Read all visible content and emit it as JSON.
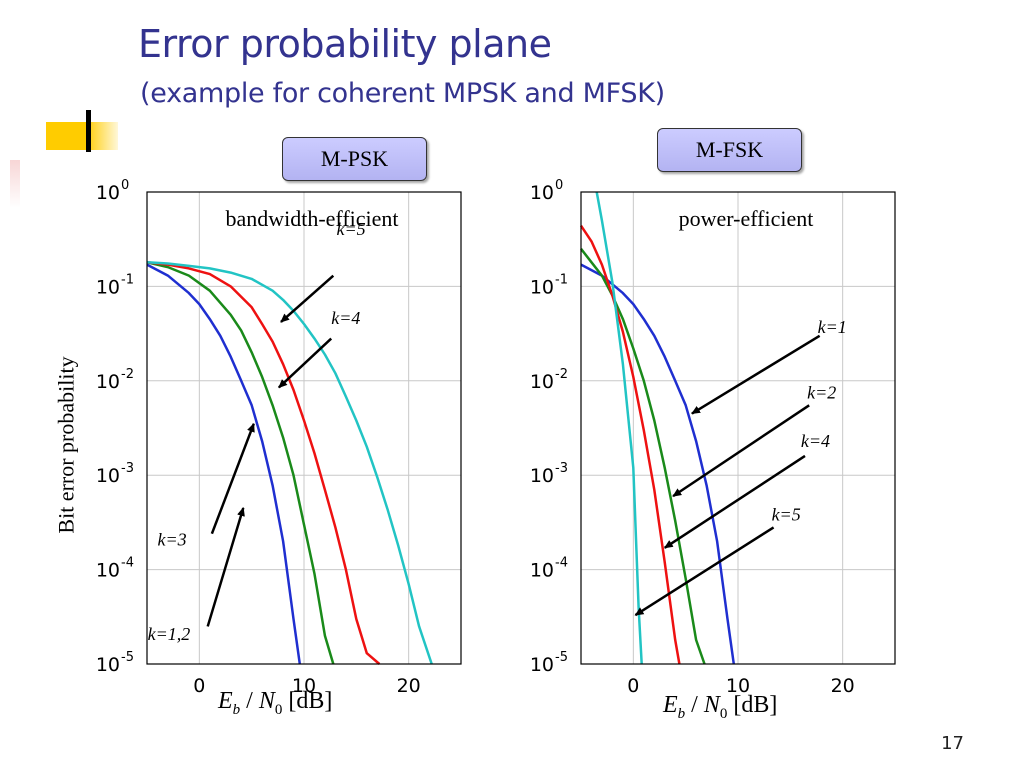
{
  "slide": {
    "title": "Error probability plane",
    "subtitle": "(example for coherent MPSK and MFSK)",
    "page_number": "17",
    "accent_color": "#33338f"
  },
  "chart_data": [
    {
      "type": "line",
      "panel_label": "M-PSK",
      "title": "bandwidth-efficient",
      "xlabel": {
        "main": "E",
        "sub": "b",
        "sep": " / ",
        "main2": "N",
        "sub2": "0",
        "unit": " [dB]"
      },
      "ylabel": "Bit error probability",
      "xlim": [
        -5,
        25
      ],
      "ylim": [
        1e-05,
        1
      ],
      "yscale": "log",
      "xticks": [
        0,
        10,
        20
      ],
      "yticks": [
        {
          "value": 1,
          "mantissa": "10",
          "exponent": "0"
        },
        {
          "value": 0.1,
          "mantissa": "10",
          "exponent": "-1"
        },
        {
          "value": 0.01,
          "mantissa": "10",
          "exponent": "-2"
        },
        {
          "value": 0.001,
          "mantissa": "10",
          "exponent": "-3"
        },
        {
          "value": 0.0001,
          "mantissa": "10",
          "exponent": "-4"
        },
        {
          "value": 1e-05,
          "mantissa": "10",
          "exponent": "-5"
        }
      ],
      "grid": true,
      "series": [
        {
          "label": "k=1,2",
          "color": "#1f2fd0",
          "x": [
            -5,
            -3,
            -1,
            0,
            1,
            2,
            3,
            4,
            5,
            6,
            7,
            8,
            9,
            9.6
          ],
          "y": [
            0.17,
            0.13,
            0.085,
            0.065,
            0.045,
            0.03,
            0.018,
            0.01,
            0.0055,
            0.0023,
            0.00078,
            0.0002,
            3e-05,
            1e-05
          ]
        },
        {
          "label": "k=3",
          "color": "#1a8a1a",
          "x": [
            -5,
            -3,
            -1,
            1,
            3,
            4,
            5,
            6,
            7,
            8,
            9,
            10,
            11,
            12,
            12.8
          ],
          "y": [
            0.18,
            0.16,
            0.13,
            0.09,
            0.05,
            0.034,
            0.02,
            0.011,
            0.0055,
            0.0025,
            0.001,
            0.0003,
            9e-05,
            2e-05,
            1e-05
          ]
        },
        {
          "label": "k=4",
          "color": "#ee1111",
          "x": [
            -5,
            -3,
            -1,
            1,
            3,
            5,
            6,
            7,
            8,
            9,
            10,
            11,
            12,
            13,
            14,
            15,
            16,
            17.2
          ],
          "y": [
            0.18,
            0.17,
            0.155,
            0.135,
            0.1,
            0.06,
            0.04,
            0.026,
            0.015,
            0.008,
            0.0038,
            0.0017,
            0.0007,
            0.00028,
            0.0001,
            3e-05,
            1.3e-05,
            1e-05
          ]
        },
        {
          "label": "k=5",
          "color": "#22c4c4",
          "x": [
            -5,
            -3,
            -1,
            1,
            3,
            5,
            7,
            8,
            9,
            10,
            11,
            12,
            13,
            14,
            15,
            16,
            17,
            18,
            19,
            20,
            21,
            22.2
          ],
          "y": [
            0.18,
            0.175,
            0.165,
            0.155,
            0.14,
            0.12,
            0.09,
            0.072,
            0.055,
            0.04,
            0.028,
            0.019,
            0.012,
            0.0068,
            0.0038,
            0.002,
            0.00095,
            0.00043,
            0.00018,
            7e-05,
            2.5e-05,
            1e-05
          ]
        }
      ],
      "annotations": [
        {
          "text": "k=5",
          "x": 14.5,
          "y": 0.35,
          "arrow_from": [
            12.8,
            0.13
          ],
          "arrow_to": [
            7.8,
            0.042
          ]
        },
        {
          "text": "k=4",
          "x": 14.0,
          "y": 0.04,
          "arrow_from": [
            12.6,
            0.028
          ],
          "arrow_to": [
            7.6,
            0.0085
          ]
        },
        {
          "text": "k=3",
          "x": -2.6,
          "y": 0.00018,
          "arrow_from": [
            1.2,
            0.00024
          ],
          "arrow_to": [
            5.2,
            0.0035
          ]
        },
        {
          "text": "k=1,2",
          "x": -2.9,
          "y": 1.8e-05,
          "arrow_from": [
            0.8,
            2.5e-05
          ],
          "arrow_to": [
            4.2,
            0.00045
          ]
        }
      ]
    },
    {
      "type": "line",
      "panel_label": "M-FSK",
      "title": "power-efficient",
      "xlabel": {
        "main": "E",
        "sub": "b",
        "sep": " / ",
        "main2": "N",
        "sub2": "0",
        "unit": " [dB]"
      },
      "ylabel": "",
      "xlim": [
        -5,
        25
      ],
      "ylim": [
        1e-05,
        1
      ],
      "yscale": "log",
      "xticks": [
        0,
        10,
        20
      ],
      "yticks": [
        {
          "value": 1,
          "mantissa": "10",
          "exponent": "0"
        },
        {
          "value": 0.1,
          "mantissa": "10",
          "exponent": "-1"
        },
        {
          "value": 0.01,
          "mantissa": "10",
          "exponent": "-2"
        },
        {
          "value": 0.001,
          "mantissa": "10",
          "exponent": "-3"
        },
        {
          "value": 0.0001,
          "mantissa": "10",
          "exponent": "-4"
        },
        {
          "value": 1e-05,
          "mantissa": "10",
          "exponent": "-5"
        }
      ],
      "grid": true,
      "series": [
        {
          "label": "k=1",
          "color": "#1f2fd0",
          "x": [
            -5,
            -3,
            -1,
            0,
            1,
            2,
            3,
            4,
            5,
            6,
            7,
            8,
            9,
            9.6
          ],
          "y": [
            0.17,
            0.13,
            0.085,
            0.065,
            0.045,
            0.03,
            0.018,
            0.01,
            0.0055,
            0.0023,
            0.00078,
            0.0002,
            3e-05,
            1e-05
          ]
        },
        {
          "label": "k=2",
          "color": "#1a8a1a",
          "x": [
            -5,
            -4,
            -3,
            -2,
            -1,
            0,
            1,
            2,
            3,
            4,
            5,
            6,
            6.8
          ],
          "y": [
            0.25,
            0.18,
            0.13,
            0.08,
            0.045,
            0.022,
            0.01,
            0.0038,
            0.0012,
            0.00033,
            8e-05,
            1.8e-05,
            1e-05
          ]
        },
        {
          "label": "k=4",
          "color": "#ee1111",
          "x": [
            -5,
            -4,
            -3,
            -2,
            -1,
            0,
            1,
            2,
            3,
            4,
            4.4
          ],
          "y": [
            0.44,
            0.3,
            0.17,
            0.08,
            0.033,
            0.011,
            0.003,
            0.0007,
            0.00012,
            1.8e-05,
            1e-05
          ]
        },
        {
          "label": "k=5",
          "color": "#22c4c4",
          "x": [
            -3.5,
            -3,
            -2,
            -1,
            0,
            0.5,
            0.8
          ],
          "y": [
            1,
            0.5,
            0.11,
            0.015,
            0.0012,
            4e-05,
            1e-05
          ]
        }
      ],
      "annotations": [
        {
          "text": "k=1",
          "x": 19.0,
          "y": 0.032,
          "arrow_from": [
            17.8,
            0.03
          ],
          "arrow_to": [
            5.6,
            0.0045
          ]
        },
        {
          "text": "k=2",
          "x": 18.0,
          "y": 0.0065,
          "arrow_from": [
            16.8,
            0.0055
          ],
          "arrow_to": [
            3.8,
            0.0006
          ]
        },
        {
          "text": "k=4",
          "x": 17.4,
          "y": 0.002,
          "arrow_from": [
            16.4,
            0.0016
          ],
          "arrow_to": [
            3.0,
            0.00017
          ]
        },
        {
          "text": "k=5",
          "x": 14.6,
          "y": 0.00033,
          "arrow_from": [
            13.4,
            0.00028
          ],
          "arrow_to": [
            0.2,
            3.3e-05
          ]
        }
      ]
    }
  ]
}
